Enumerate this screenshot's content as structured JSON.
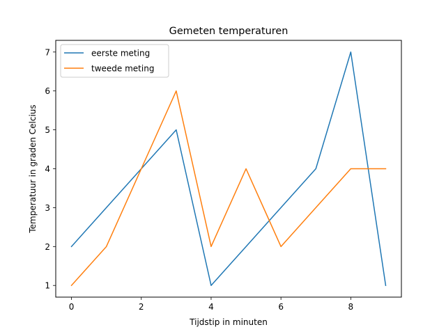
{
  "chart_data": {
    "type": "line",
    "title": "Gemeten temperaturen",
    "xlabel": "Tijdstip in minuten",
    "ylabel": "Temperatuur in graden Celcius",
    "x": [
      0,
      1,
      2,
      3,
      4,
      5,
      6,
      7,
      8,
      9
    ],
    "series": [
      {
        "name": "eerste meting",
        "color": "#1f77b4",
        "values": [
          2,
          3,
          4,
          5,
          1,
          2,
          3,
          4,
          7,
          1
        ]
      },
      {
        "name": "tweede meting",
        "color": "#ff7f0e",
        "values": [
          1,
          2,
          4,
          6,
          2,
          4,
          2,
          3,
          4,
          4
        ]
      }
    ],
    "xlim": [
      -0.45,
      9.45
    ],
    "ylim": [
      0.7,
      7.3
    ],
    "xticks": [
      "0",
      "2",
      "4",
      "6",
      "8"
    ],
    "yticks": [
      "1",
      "2",
      "3",
      "4",
      "5",
      "6",
      "7"
    ],
    "grid": false,
    "legend_position": "upper left"
  }
}
